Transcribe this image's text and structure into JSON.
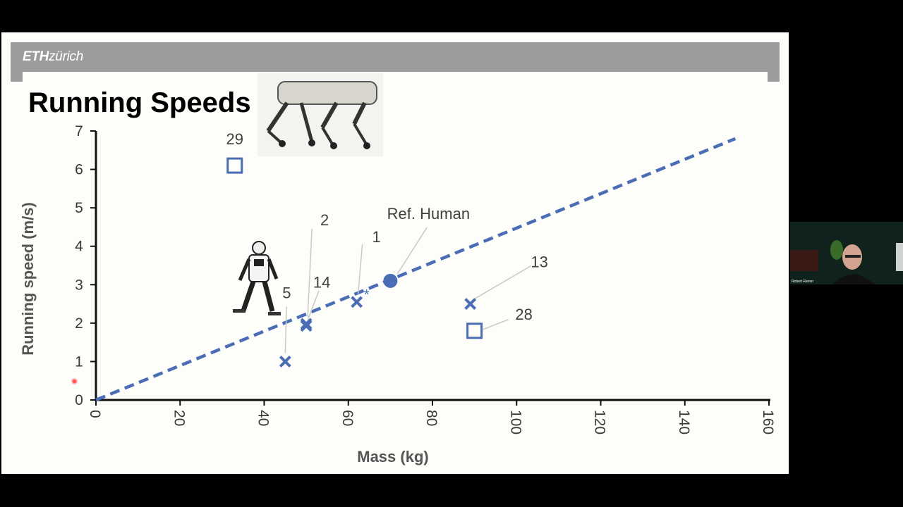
{
  "slide": {
    "logo_bold": "ETH",
    "logo_regular": "zürich",
    "title": "Running Speeds"
  },
  "webcam": {
    "caption": "Robert Riener"
  },
  "chart_data": {
    "type": "scatter",
    "xlabel": "Mass (kg)",
    "ylabel": "Running speed (m/s)",
    "xlim": [
      0,
      160
    ],
    "ylim": [
      0,
      7
    ],
    "x_ticks": [
      "0",
      "20",
      "40",
      "60",
      "80",
      "100",
      "120",
      "140",
      "160"
    ],
    "y_ticks": [
      "0",
      "1",
      "2",
      "3",
      "4",
      "5",
      "6",
      "7"
    ],
    "trend_line": {
      "x": [
        0,
        152
      ],
      "y": [
        0,
        6.8
      ],
      "style": "dashed",
      "color": "#4a6db5"
    },
    "points": [
      {
        "label": "29",
        "x": 33,
        "y": 6.1,
        "marker": "square"
      },
      {
        "label": "5",
        "x": 45,
        "y": 1.0,
        "marker": "x"
      },
      {
        "label": "2",
        "x": 50,
        "y": 1.98,
        "marker": "x"
      },
      {
        "label": "14",
        "x": 50,
        "y": 1.93,
        "marker": "x"
      },
      {
        "label": "1",
        "x": 62,
        "y": 2.55,
        "marker": "x",
        "note": "*"
      },
      {
        "label": "Ref. Human",
        "x": 70,
        "y": 3.1,
        "marker": "circle"
      },
      {
        "label": "13",
        "x": 89,
        "y": 2.5,
        "marker": "x"
      },
      {
        "label": "28",
        "x": 90,
        "y": 1.8,
        "marker": "square"
      }
    ],
    "marker_color": "#4a6db5"
  }
}
